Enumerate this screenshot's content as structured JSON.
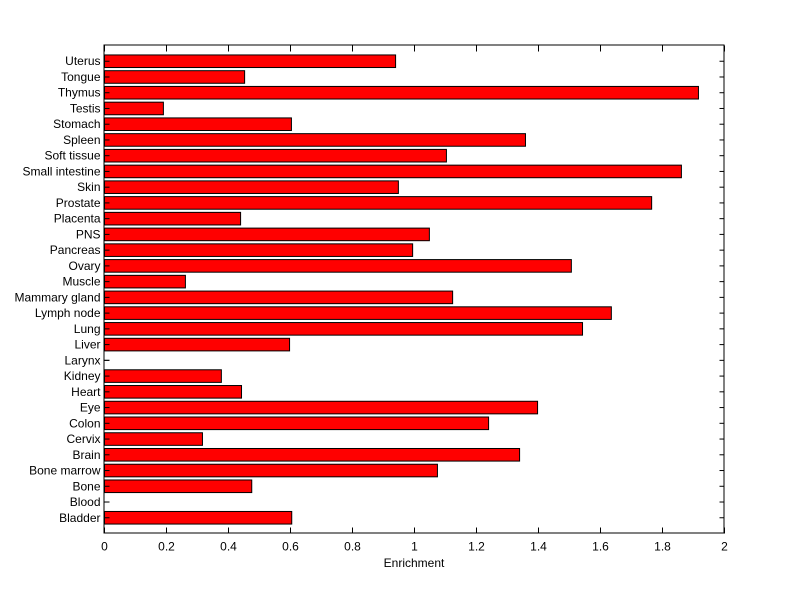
{
  "chart_data": {
    "type": "bar",
    "orientation": "horizontal",
    "title": "",
    "xlabel": "Enrichment",
    "ylabel": "",
    "xlim": [
      0,
      2
    ],
    "xticks": [
      "0",
      "0.2",
      "0.4",
      "0.6",
      "0.8",
      "1",
      "1.2",
      "1.4",
      "1.6",
      "1.8",
      "2"
    ],
    "grid": false,
    "bar_color": "#ff0000",
    "categories": [
      "Bladder",
      "Blood",
      "Bone",
      "Bone marrow",
      "Brain",
      "Cervix",
      "Colon",
      "Eye",
      "Heart",
      "Kidney",
      "Larynx",
      "Liver",
      "Lung",
      "Lymph node",
      "Mammary gland",
      "Muscle",
      "Ovary",
      "Pancreas",
      "PNS",
      "Placenta",
      "Prostate",
      "Skin",
      "Small intestine",
      "Soft tissue",
      "Spleen",
      "Stomach",
      "Testis",
      "Thymus",
      "Tongue",
      "Uterus"
    ],
    "values": [
      0.604,
      0,
      0.475,
      1.074,
      1.339,
      0.316,
      1.239,
      1.397,
      0.442,
      0.377,
      0,
      0.597,
      1.542,
      1.635,
      1.123,
      0.261,
      1.506,
      0.994,
      1.048,
      0.439,
      1.765,
      0.948,
      1.861,
      1.103,
      1.358,
      0.603,
      0.19,
      1.916,
      0.452,
      0.939
    ]
  }
}
